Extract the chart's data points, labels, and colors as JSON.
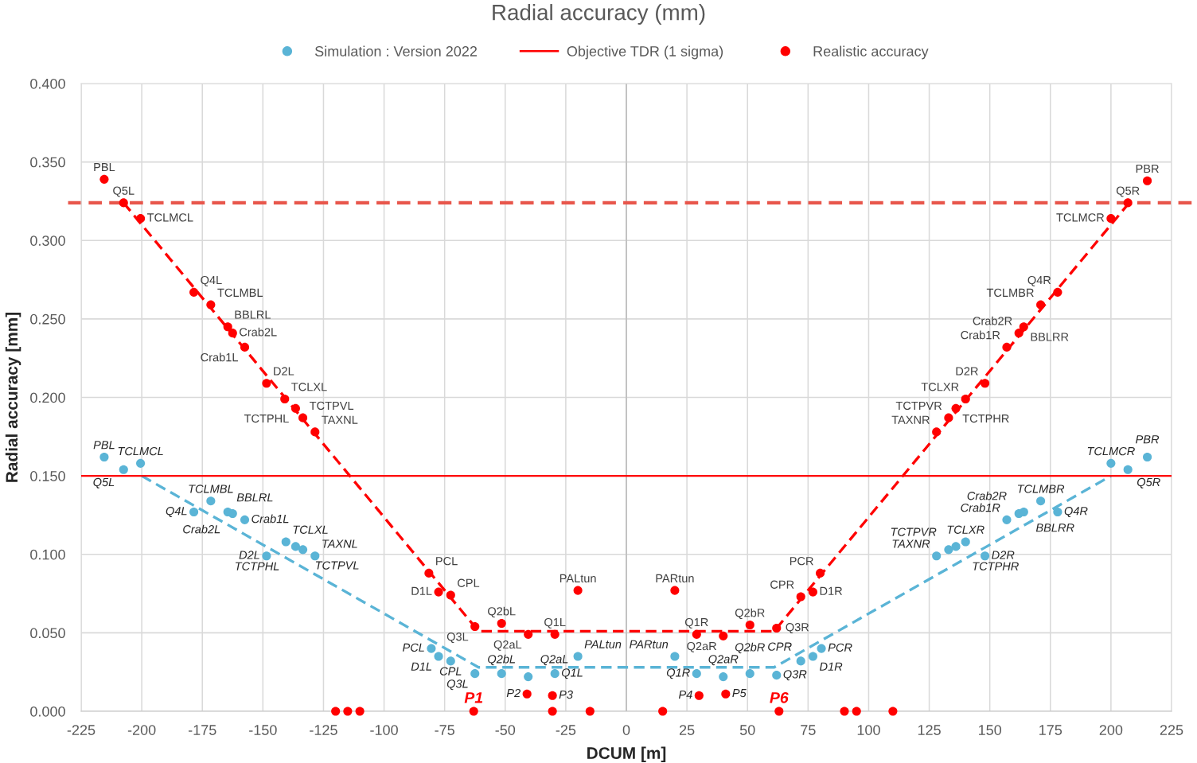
{
  "chart_data": {
    "type": "scatter",
    "title": "Radial accuracy (mm)",
    "xlabel": "DCUM [m]",
    "ylabel": "Radial accuracy [mm]",
    "xlim": [
      -225,
      225
    ],
    "xticks": [
      -225,
      -200,
      -175,
      -150,
      -125,
      -100,
      -75,
      -50,
      -25,
      0,
      25,
      50,
      75,
      100,
      125,
      150,
      175,
      200,
      225
    ],
    "ylim": [
      0,
      0.4
    ],
    "yticks": [
      {
        "value": 0,
        "label": "0.000"
      },
      {
        "value": 0.05,
        "label": "0.050"
      },
      {
        "value": 0.1,
        "label": "0.100"
      },
      {
        "value": 0.15,
        "label": "0.150"
      },
      {
        "value": 0.2,
        "label": "0.200"
      },
      {
        "value": 0.25,
        "label": "0.250"
      },
      {
        "value": 0.3,
        "label": "0.300"
      },
      {
        "value": 0.35,
        "label": "0.350"
      },
      {
        "value": 0.4,
        "label": "0.400"
      }
    ],
    "grid": true,
    "legend": "top",
    "marker": "circle",
    "ref_lines": [
      {
        "axis": "y",
        "value": 0.324,
        "color": "#e8564b",
        "line_style": "dashed"
      },
      {
        "axis": "x",
        "value": 0,
        "color": "#bfbfbf",
        "line_style": "solid"
      }
    ],
    "series": [
      {
        "name": "Simulation : Version 2022",
        "color": "#5ab4d6",
        "x": [
          -215.5,
          -207.5,
          -200.5,
          -178.5,
          -171.5,
          -164.5,
          -162.5,
          -157.5,
          -148.5,
          -140.5,
          -136.5,
          -133.5,
          -128.5,
          -80.5,
          -77.5,
          -72.5,
          -62.5,
          -51.5,
          -40.5,
          -29.5,
          -20,
          20,
          29,
          40,
          51,
          62,
          72,
          77,
          80.5,
          128,
          133,
          136,
          140,
          148,
          157,
          162,
          164,
          171,
          178,
          200,
          207,
          215
        ],
        "values": [
          0.162,
          0.154,
          0.158,
          0.127,
          0.134,
          0.127,
          0.126,
          0.122,
          0.099,
          0.108,
          0.105,
          0.103,
          0.099,
          0.04,
          0.035,
          0.032,
          0.024,
          0.024,
          0.022,
          0.024,
          0.035,
          0.035,
          0.024,
          0.022,
          0.024,
          0.023,
          0.032,
          0.035,
          0.04,
          0.099,
          0.103,
          0.105,
          0.108,
          0.099,
          0.122,
          0.126,
          0.127,
          0.134,
          0.127,
          0.158,
          0.154,
          0.162
        ],
        "value_labels": [
          "PBL",
          "Q5L",
          "TCLMCL",
          "Q4L",
          "TCLMBL",
          "BBLRL",
          "Crab2L",
          "Crab1L",
          "D2L",
          "TCLXL",
          "TCTPHL",
          "TCTPVL",
          "TAXNL",
          "PCL",
          "D1L",
          "CPL",
          "Q3L",
          "Q2bL",
          "Q2aL",
          "Q1L",
          "PALtun",
          "PARtun",
          "Q1R",
          "Q2aR",
          "Q2bR",
          "Q3R",
          "CPR",
          "D1R",
          "PCR",
          "TAXNR",
          "TCTPVR",
          "TCTPHR",
          "TCLXR",
          "D2R",
          "Crab1R",
          "Crab2R",
          "BBLRR",
          "TCLMBR",
          "Q4R",
          "TCLMCR",
          "Q5R",
          "PBR"
        ]
      },
      {
        "type": "line",
        "color": "#5ab4d6",
        "line_style": "dashed",
        "marker": "none",
        "x": [
          -200,
          -61,
          61,
          200
        ],
        "values": [
          0.15,
          0.028,
          0.028,
          0.15
        ]
      },
      {
        "name": "Objective TDR (1 sigma)",
        "type": "line",
        "color": "#ff0000",
        "line_style": "solid",
        "marker": "none",
        "x": [
          -225,
          225
        ],
        "values": [
          0.15,
          0.15
        ]
      },
      {
        "name": "Realistic accuracy",
        "color": "#ff0000",
        "x": [
          -215.5,
          -207.5,
          -200.5,
          -178.5,
          -171.5,
          -164.5,
          -162.5,
          -157.5,
          -148.5,
          -141,
          -136.5,
          -133.5,
          -128.5,
          -81.5,
          -77.5,
          -72.5,
          -62.5,
          -51.5,
          -40.5,
          -29.5,
          -20,
          20,
          29,
          40,
          51,
          62,
          72,
          77,
          80,
          128,
          133,
          136,
          140,
          148,
          157,
          162,
          164,
          171,
          178,
          200,
          207,
          215
        ],
        "values": [
          0.339,
          0.324,
          0.314,
          0.267,
          0.259,
          0.245,
          0.241,
          0.232,
          0.209,
          0.199,
          0.193,
          0.187,
          0.178,
          0.088,
          0.076,
          0.074,
          0.054,
          0.056,
          0.049,
          0.049,
          0.077,
          0.077,
          0.049,
          0.048,
          0.055,
          0.053,
          0.073,
          0.076,
          0.088,
          0.178,
          0.187,
          0.193,
          0.199,
          0.209,
          0.232,
          0.241,
          0.245,
          0.259,
          0.267,
          0.314,
          0.324,
          0.338
        ],
        "value_labels": [
          "PBL",
          "Q5L",
          "TCLMCL",
          "Q4L",
          "TCLMBL",
          "BBLRL",
          "Crab2L",
          "Crab1L",
          "D2L",
          "TCLXL",
          "TCTPHL",
          "TCTPVL",
          "TAXNL",
          "PCL",
          "D1L",
          "CPL",
          "Q3L",
          "Q2bL",
          "Q2aL",
          "Q1L",
          "PALtun",
          "PARtun",
          "Q1R",
          "Q2aR",
          "Q2bR",
          "Q3R",
          "CPR",
          "D1R",
          "PCR",
          "TAXNR",
          "TCTPVR",
          "TCTPHR",
          "TCLXR",
          "D2R",
          "Crab1R",
          "Crab2R",
          "BBLRR",
          "TCLMBR",
          "Q4R",
          "TCLMCR",
          "Q5R",
          "PBR"
        ]
      },
      {
        "type": "line",
        "color": "#ff0000",
        "line_style": "dashed",
        "marker": "none",
        "x": [
          -207.5,
          -61,
          61,
          207.5
        ],
        "values": [
          0.324,
          0.051,
          0.051,
          0.324
        ]
      },
      {
        "color": "#ff0000",
        "x": [
          -41,
          -30.5,
          30,
          41
        ],
        "values": [
          0.011,
          0.01,
          0.01,
          0.011
        ],
        "value_labels": [
          "P2",
          "P3",
          "P4",
          "P5"
        ]
      },
      {
        "color": "#ff0000",
        "x": [
          -120,
          -115,
          -110,
          -63,
          -30.5,
          -15,
          15,
          63,
          90,
          95,
          110
        ],
        "values": [
          0,
          0,
          0,
          0,
          0,
          0,
          0,
          0,
          0,
          0,
          0
        ],
        "value_labels": [
          null,
          null,
          null,
          "P1",
          null,
          null,
          null,
          "P6",
          null,
          null,
          null
        ]
      }
    ]
  }
}
